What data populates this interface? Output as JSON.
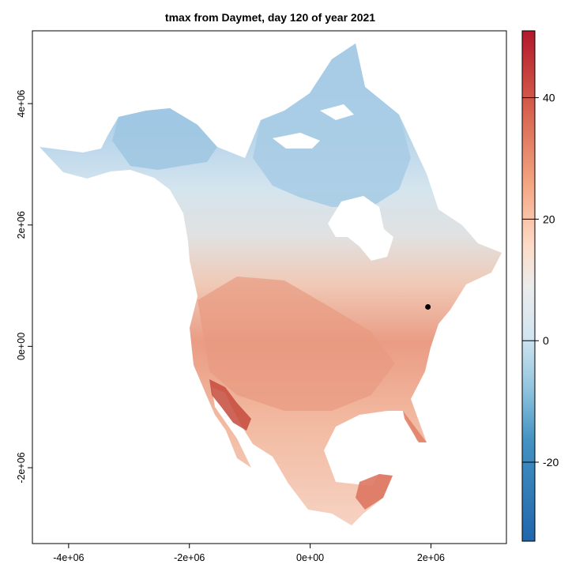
{
  "title": "tmax from Daymet, day 120 of year 2021",
  "map": {
    "x_ticks": [
      {
        "value": -4000000,
        "label": "-4e+06"
      },
      {
        "value": -2000000,
        "label": "-2e+06"
      },
      {
        "value": 0,
        "label": "0e+00"
      },
      {
        "value": 2000000,
        "label": "2e+06"
      }
    ],
    "y_ticks": [
      {
        "value": 4000000,
        "label": "4e+06"
      },
      {
        "value": 2000000,
        "label": "2e+06"
      },
      {
        "value": 0,
        "label": "0e+00"
      },
      {
        "value": -2000000,
        "label": "-2e+06"
      }
    ],
    "xlim": [
      -4600000,
      3250000
    ],
    "ylim": [
      -3250000,
      5200000
    ],
    "marker": {
      "x": 1950000,
      "y": 650000,
      "color": "#000000"
    }
  },
  "colorbar": {
    "range": [
      -33,
      51
    ],
    "ticks": [
      {
        "value": 40,
        "label": "40"
      },
      {
        "value": 20,
        "label": "20"
      },
      {
        "value": 0,
        "label": "0"
      },
      {
        "value": -20,
        "label": "-20"
      }
    ],
    "palette": [
      "#2166ac",
      "#4393c3",
      "#92c5de",
      "#d1e5f0",
      "#f7f7f7",
      "#fddbc7",
      "#f4a582",
      "#d6604d",
      "#b2182b"
    ]
  },
  "colors": {
    "cold": "#aacde6",
    "cool": "#cfe3ee",
    "neutral": "#e2e2e2",
    "warm_light": "#f3c4ae",
    "warm": "#ea9a80",
    "hot": "#d9644c",
    "very_hot": "#b83530"
  }
}
